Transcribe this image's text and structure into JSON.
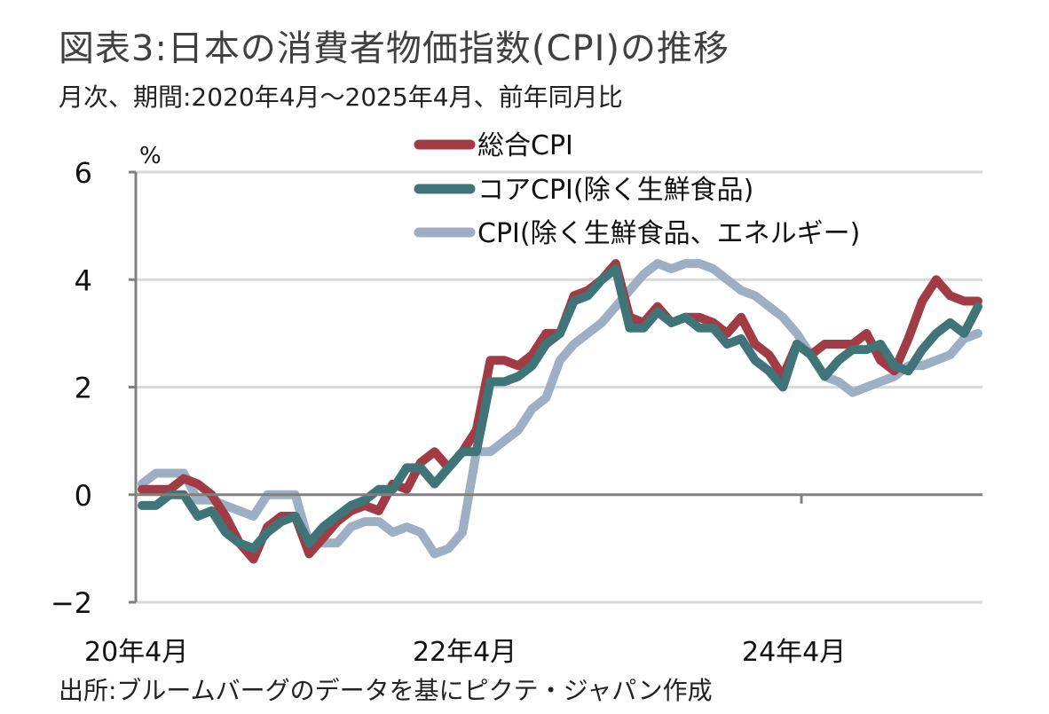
{
  "header": {
    "title": "図表3:日本の消費者物価指数(CPI)の推移",
    "subtitle": "月次、期間:2020年4月～2025年4月、前年同月比"
  },
  "footer": {
    "source": "出所:ブルームバーグのデータを基にピクテ・ジャパン作成"
  },
  "chart_data": {
    "type": "line",
    "title": "図表3:日本の消費者物価指数(CPI)の推移",
    "subtitle": "月次、期間:2020年4月～2025年4月、前年同月比",
    "ylabel": "%",
    "xlabel": "",
    "ylim": [
      -2,
      6
    ],
    "yticks": [
      "6",
      "4",
      "2",
      "0",
      "−2"
    ],
    "ytick_values": [
      6,
      4,
      2,
      0,
      -2
    ],
    "xtick_labels": [
      "20年4月",
      "22年4月",
      "24年4月"
    ],
    "xtick_indices": [
      0,
      24,
      48
    ],
    "x_start": "2020-04",
    "x_end": "2025-04",
    "grid": true,
    "legend_position": "top-right",
    "colors": {
      "headline": "#a13c44",
      "core": "#3f7478",
      "core_core": "#9dafc4",
      "axis": "#808080",
      "grid": "#d9d9d9"
    },
    "series": [
      {
        "name": "総合CPI",
        "key": "headline",
        "values": [
          0.1,
          0.1,
          0.1,
          0.3,
          0.2,
          0.0,
          -0.4,
          -0.9,
          -1.2,
          -0.6,
          -0.4,
          -0.4,
          -1.1,
          -0.8,
          -0.5,
          -0.3,
          -0.2,
          -0.3,
          0.2,
          0.1,
          0.6,
          0.8,
          0.5,
          0.8,
          1.2,
          2.5,
          2.5,
          2.4,
          2.6,
          3.0,
          3.0,
          3.7,
          3.8,
          4.0,
          4.3,
          3.3,
          3.2,
          3.5,
          3.2,
          3.3,
          3.3,
          3.2,
          3.0,
          3.3,
          2.8,
          2.6,
          2.2,
          2.8,
          2.6,
          2.8,
          2.8,
          2.8,
          3.0,
          2.5,
          2.3,
          2.9,
          3.6,
          4.0,
          3.7,
          3.6,
          3.6
        ]
      },
      {
        "name": "コアCPI(除く生鮮食品)",
        "key": "core",
        "values": [
          -0.2,
          -0.2,
          0.0,
          0.0,
          -0.4,
          -0.3,
          -0.7,
          -0.9,
          -1.0,
          -0.7,
          -0.5,
          -0.4,
          -0.9,
          -0.6,
          -0.4,
          -0.2,
          -0.1,
          0.1,
          0.1,
          0.5,
          0.5,
          0.2,
          0.5,
          0.8,
          0.8,
          2.1,
          2.1,
          2.2,
          2.4,
          2.8,
          3.0,
          3.6,
          3.7,
          4.0,
          4.2,
          3.1,
          3.1,
          3.4,
          3.2,
          3.3,
          3.1,
          3.1,
          2.8,
          2.9,
          2.5,
          2.3,
          2.0,
          2.8,
          2.6,
          2.2,
          2.5,
          2.7,
          2.7,
          2.8,
          2.4,
          2.3,
          2.7,
          3.0,
          3.2,
          3.0,
          3.5
        ]
      },
      {
        "name": "CPI(除く生鮮食品、エネルギー)",
        "key": "core_core",
        "values": [
          0.2,
          0.4,
          0.4,
          0.4,
          -0.1,
          -0.1,
          -0.2,
          -0.3,
          -0.4,
          0.0,
          0.0,
          0.0,
          -0.9,
          -0.9,
          -0.9,
          -0.6,
          -0.5,
          -0.5,
          -0.7,
          -0.6,
          -0.7,
          -1.1,
          -1.0,
          -0.7,
          0.8,
          0.8,
          1.0,
          1.2,
          1.6,
          1.8,
          2.5,
          2.8,
          3.0,
          3.2,
          3.5,
          3.8,
          4.1,
          4.3,
          4.2,
          4.3,
          4.3,
          4.2,
          4.0,
          3.8,
          3.7,
          3.5,
          3.3,
          3.0,
          2.6,
          2.2,
          2.1,
          1.9,
          2.0,
          2.1,
          2.2,
          2.4,
          2.4,
          2.5,
          2.6,
          2.9,
          3.0
        ]
      }
    ]
  }
}
